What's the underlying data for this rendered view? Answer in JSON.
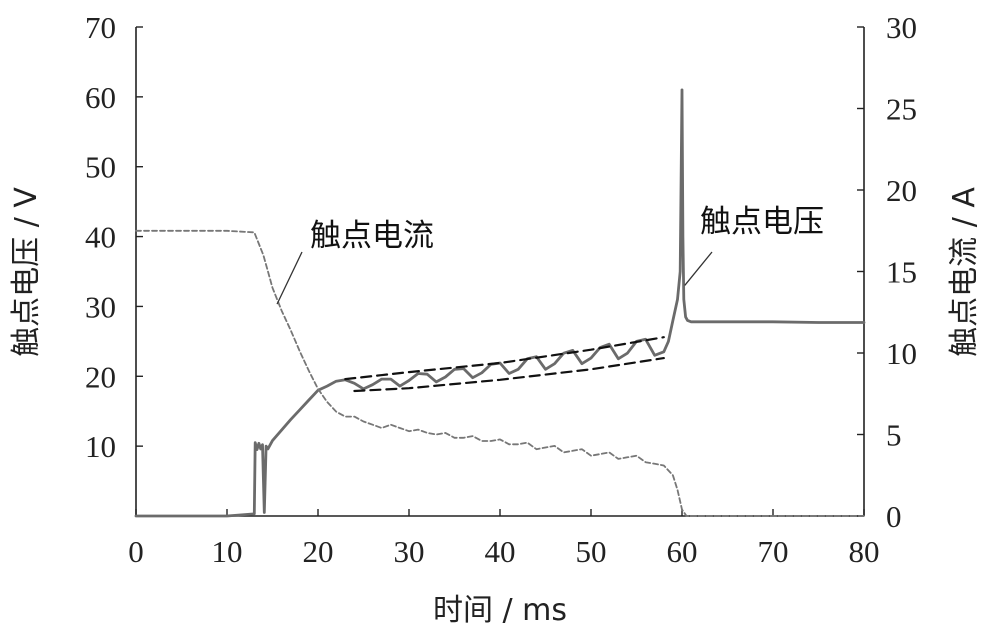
{
  "chart_data": {
    "type": "line",
    "xlabel": "时间 / ms",
    "ylabel_left": "触点电压 / V",
    "ylabel_right": "触点电流 / A",
    "xlim": [
      0,
      80
    ],
    "ylim_left": [
      0,
      70
    ],
    "ylim_right": [
      0,
      30
    ],
    "xticks": [
      0,
      10,
      20,
      30,
      40,
      50,
      60,
      70,
      80
    ],
    "yticks_left": [
      10,
      20,
      30,
      40,
      50,
      60,
      70
    ],
    "yticks_right": [
      0,
      5,
      10,
      15,
      20,
      25,
      30
    ],
    "grid": false,
    "series": [
      {
        "name": "触点电压",
        "axis": "left",
        "style": "solid",
        "color": "#6b6b6b",
        "x": [
          0,
          10,
          13,
          13.1,
          13.3,
          13.5,
          13.7,
          13.9,
          14.1,
          14.3,
          14.5,
          15,
          16,
          17,
          18,
          19,
          20,
          21,
          22,
          23,
          24,
          25,
          26,
          27,
          28,
          29,
          30,
          31,
          32,
          33,
          34,
          35,
          36,
          37,
          38,
          39,
          40,
          41,
          42,
          43,
          44,
          45,
          46,
          47,
          48,
          49,
          50,
          51,
          52,
          53,
          54,
          55,
          56,
          57,
          58,
          58.5,
          59,
          59.5,
          59.8,
          60,
          60.1,
          60.2,
          60.4,
          60.6,
          61,
          65,
          70,
          75,
          80
        ],
        "y": [
          0,
          0,
          0.3,
          10.5,
          9.5,
          10.4,
          9.6,
          10.2,
          0.5,
          10,
          9.6,
          10.8,
          12.3,
          13.8,
          15.2,
          16.6,
          18,
          18.6,
          19.3,
          19.5,
          19,
          18.2,
          18.8,
          19.6,
          19.6,
          18.6,
          19.4,
          20.4,
          20.3,
          19.2,
          19.9,
          21,
          21.1,
          19.8,
          20.5,
          21.7,
          21.9,
          20.4,
          21,
          22.5,
          22.8,
          21,
          21.8,
          23.3,
          23.7,
          21.8,
          22.6,
          24.1,
          24.6,
          22.5,
          23.3,
          25,
          25.3,
          23,
          23.5,
          25,
          28,
          31,
          35,
          61,
          40,
          31,
          28.5,
          28,
          27.8,
          27.8,
          27.8,
          27.7,
          27.7
        ]
      },
      {
        "name": "触点电流",
        "axis": "right",
        "style": "dashed",
        "color": "#777777",
        "x": [
          0,
          10,
          13,
          14,
          15,
          16,
          17,
          18,
          19,
          20,
          21,
          22,
          23,
          24,
          25,
          26,
          27,
          28,
          29,
          30,
          31,
          32,
          33,
          34,
          35,
          36,
          37,
          38,
          39,
          40,
          41,
          42,
          43,
          44,
          45,
          46,
          47,
          48,
          49,
          50,
          51,
          52,
          53,
          54,
          55,
          56,
          57,
          58,
          59,
          59.5,
          60,
          60.5,
          65,
          70,
          75,
          80
        ],
        "y": [
          17.5,
          17.5,
          17.4,
          16,
          14,
          12.6,
          11.4,
          10.1,
          8.9,
          7.8,
          7,
          6.4,
          6.1,
          6.1,
          5.8,
          5.6,
          5.4,
          5.6,
          5.4,
          5.2,
          5.3,
          5.1,
          5,
          5.1,
          4.8,
          4.8,
          4.9,
          4.6,
          4.6,
          4.7,
          4.4,
          4.4,
          4.5,
          4.1,
          4.2,
          4.3,
          3.9,
          4,
          4.1,
          3.7,
          3.8,
          3.9,
          3.5,
          3.6,
          3.7,
          3.3,
          3.2,
          3.1,
          2.5,
          1.6,
          0.4,
          0,
          0,
          0,
          0,
          0
        ]
      },
      {
        "name": "",
        "axis": "left",
        "style": "envelope-upper",
        "color": "#111111",
        "x": [
          23,
          30,
          40,
          50,
          58
        ],
        "y": [
          19.6,
          20.6,
          21.9,
          23.8,
          25.6
        ]
      },
      {
        "name": "",
        "axis": "left",
        "style": "envelope-lower",
        "color": "#111111",
        "x": [
          24,
          30,
          40,
          50,
          58
        ],
        "y": [
          17.9,
          18.3,
          19.5,
          21.0,
          22.6
        ]
      }
    ],
    "annotations": [
      {
        "text": "触点电流",
        "target_series": "触点电流",
        "point": [
          15.5,
          13.0
        ]
      },
      {
        "text": "触点电压",
        "target_series": "触点电压",
        "point": [
          60.3,
          33.0
        ]
      }
    ]
  }
}
